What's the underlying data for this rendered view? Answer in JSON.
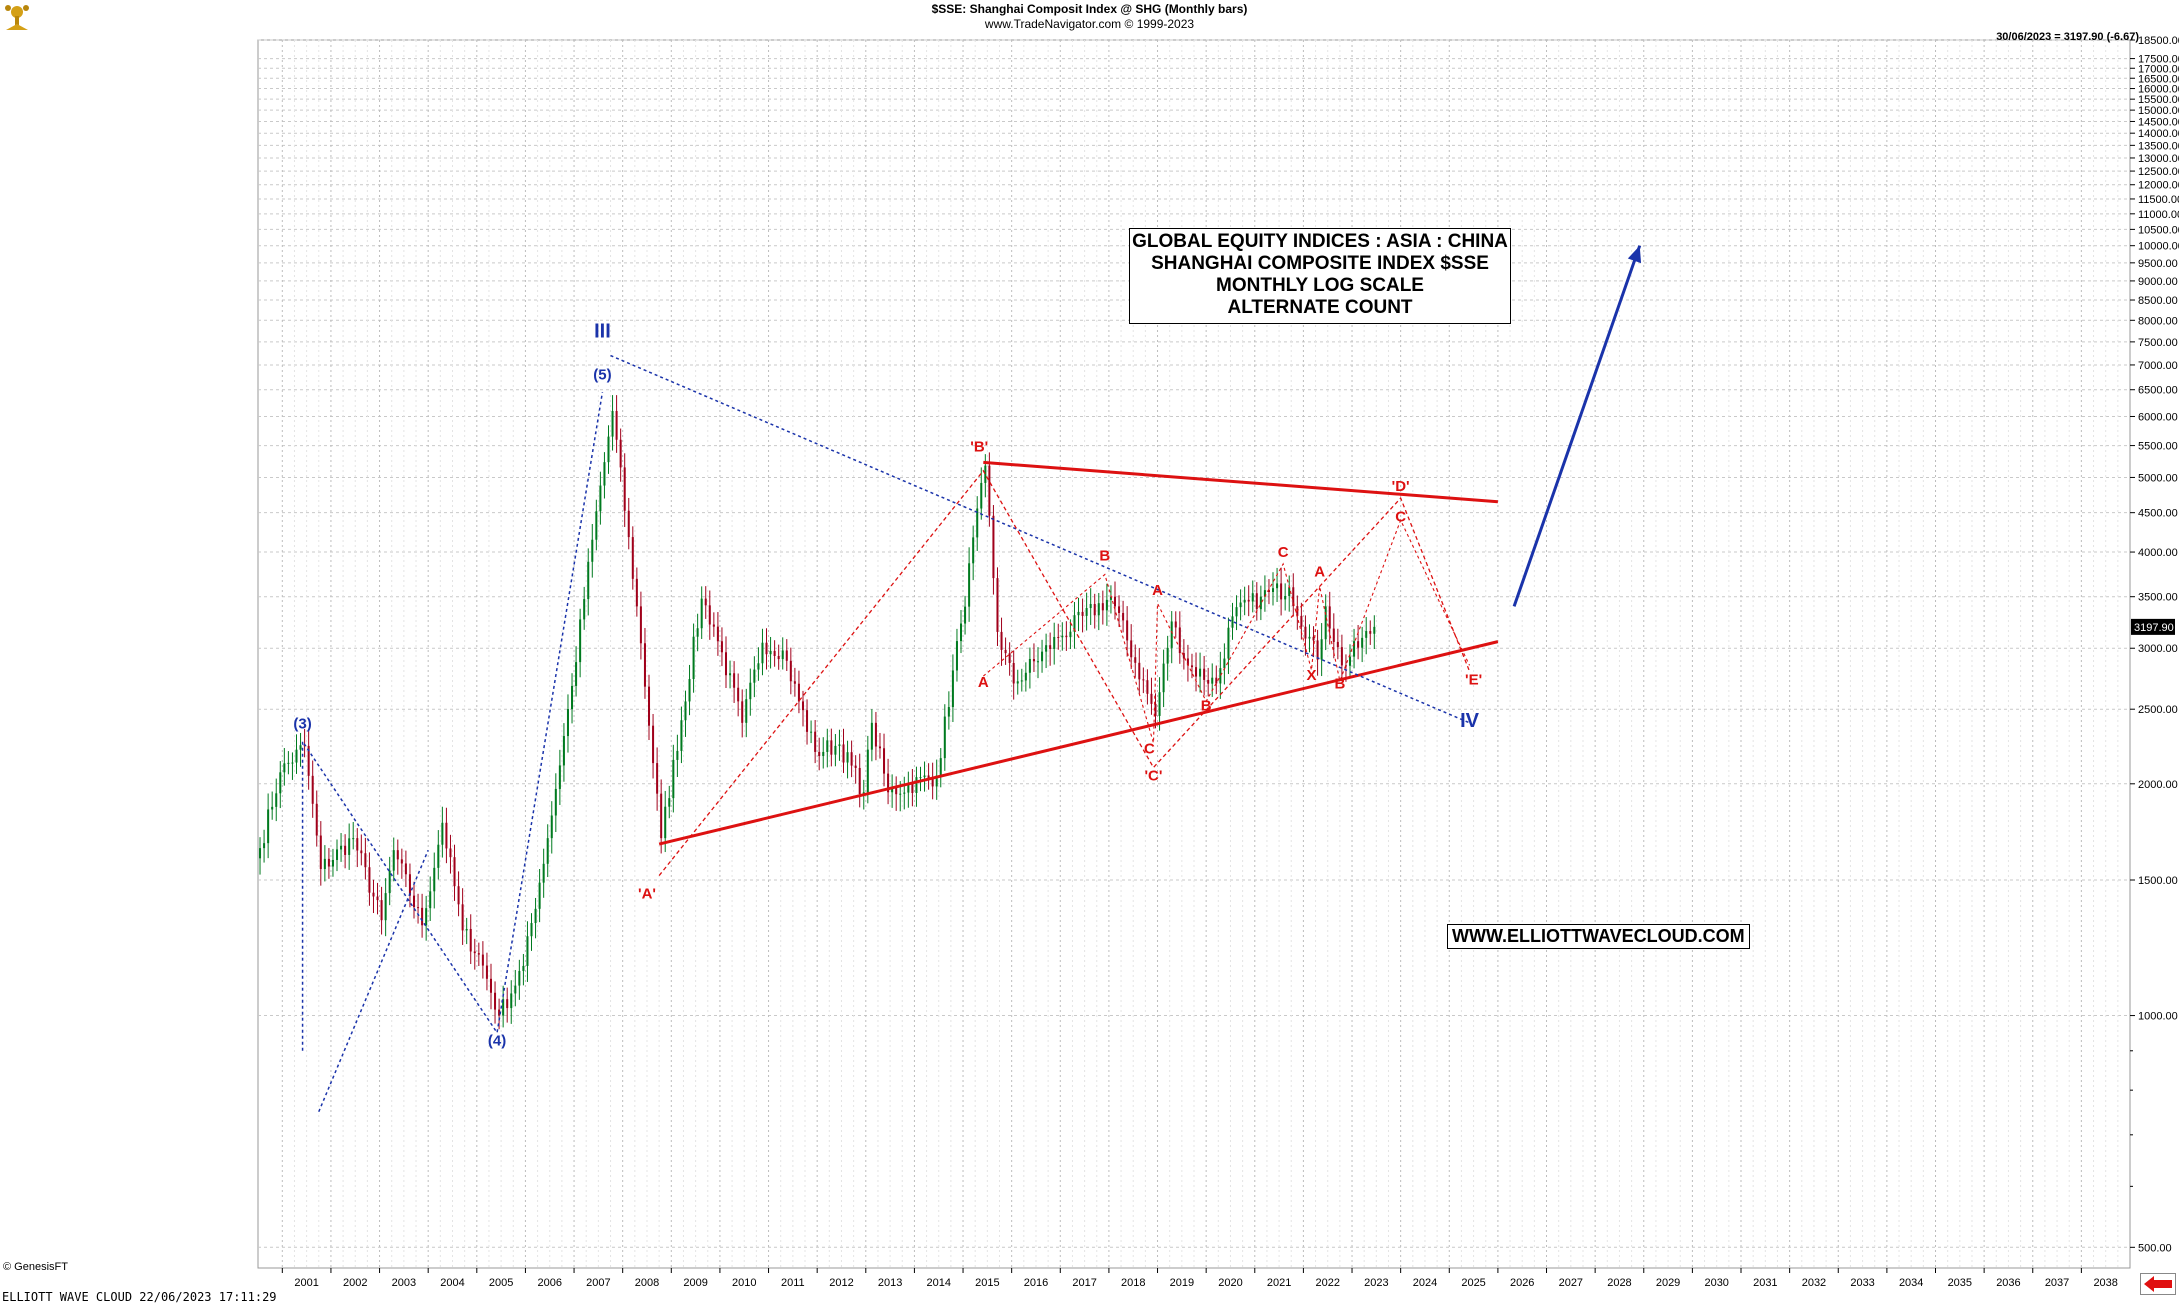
{
  "header": {
    "title": "$SSE:  Shanghai Composit Index @ SHG  (Monthly bars)",
    "source": "www.TradeNavigator.com © 1999-2023",
    "last_quote": "30/06/2023 = 3197.90 (-6.67)"
  },
  "info_box": {
    "lines": [
      "GLOBAL EQUITY INDICES : ASIA : CHINA",
      "SHANGHAI COMPOSITE INDEX $SSE",
      "MONTHLY LOG SCALE",
      "ALTERNATE COUNT"
    ]
  },
  "website": "WWW.ELLIOTTWAVECLOUD.COM",
  "copyright": "© GenesisFT",
  "footer": "ELLIOTT WAVE CLOUD   22/06/2023 17:11:29",
  "colors": {
    "bull": "#007a1f",
    "bear": "#a0001a",
    "red_line": "#dd1111",
    "blue_line": "#1a33aa",
    "grid": "#c9c9c9"
  },
  "icons": {
    "logo": "bull-bear-logo-icon",
    "nav": "red-arrow-left-icon"
  },
  "chart_data": {
    "type": "candlestick",
    "scale": "log",
    "period": "monthly",
    "ylim": [
      470,
      18500
    ],
    "xlim": [
      "2000-07",
      "2038-12"
    ],
    "x_ticks": [
      "2001",
      "2002",
      "2003",
      "2004",
      "2005",
      "2006",
      "2007",
      "2008",
      "2009",
      "2010",
      "2011",
      "2012",
      "2013",
      "2014",
      "2015",
      "2016",
      "2017",
      "2018",
      "2019",
      "2020",
      "2021",
      "2022",
      "2023",
      "2024",
      "2025",
      "2026",
      "2027",
      "2028",
      "2029",
      "2030",
      "2031",
      "2032",
      "2033",
      "2034",
      "2035",
      "2036",
      "2037",
      "2038"
    ],
    "y_ticks": [
      "500.00",
      "1000.00",
      "1500.00",
      "2000.00",
      "2500.00",
      "3000.00",
      "3500.00",
      "4000.00",
      "4500.00",
      "5000.00",
      "5500.00",
      "6000.00",
      "6500.00",
      "7000.00",
      "7500.00",
      "8000.00",
      "8500.00",
      "9000.00",
      "9500.00",
      "10000.00",
      "10500.00",
      "11000.00",
      "11500.00",
      "12000.00",
      "12500.00",
      "13000.00",
      "13500.00",
      "14000.00",
      "14500.00",
      "15000.00",
      "15500.00",
      "16000.00",
      "16500.00",
      "17000.00",
      "17500.00",
      "18500.00"
    ],
    "last_price": "3197.90",
    "price_anchors": [
      [
        "2000-07",
        1650
      ],
      [
        "2000-12",
        2070
      ],
      [
        "2001-06",
        2240
      ],
      [
        "2001-10",
        1550
      ],
      [
        "2002-06",
        1700
      ],
      [
        "2003-01",
        1330
      ],
      [
        "2003-04",
        1640
      ],
      [
        "2003-11",
        1310
      ],
      [
        "2004-04",
        1780
      ],
      [
        "2004-09",
        1290
      ],
      [
        "2005-01",
        1200
      ],
      [
        "2005-06",
        1000
      ],
      [
        "2005-12",
        1160
      ],
      [
        "2006-06",
        1700
      ],
      [
        "2006-12",
        2680
      ],
      [
        "2007-05",
        4150
      ],
      [
        "2007-10",
        6100
      ],
      [
        "2008-04",
        3400
      ],
      [
        "2008-10",
        1700
      ],
      [
        "2009-08",
        3480
      ],
      [
        "2009-11",
        3200
      ],
      [
        "2010-06",
        2400
      ],
      [
        "2010-11",
        3050
      ],
      [
        "2011-04",
        2980
      ],
      [
        "2011-12",
        2200
      ],
      [
        "2012-06",
        2250
      ],
      [
        "2012-12",
        1950
      ],
      [
        "2013-02",
        2400
      ],
      [
        "2013-06",
        1950
      ],
      [
        "2014-06",
        2050
      ],
      [
        "2014-12",
        3230
      ],
      [
        "2015-06",
        5180
      ],
      [
        "2015-09",
        3150
      ],
      [
        "2016-01",
        2700
      ],
      [
        "2016-12",
        3100
      ],
      [
        "2018-01",
        3500
      ],
      [
        "2018-12",
        2450
      ],
      [
        "2019-04",
        3250
      ],
      [
        "2019-08",
        2850
      ],
      [
        "2020-03",
        2700
      ],
      [
        "2020-07",
        3300
      ],
      [
        "2021-02",
        3500
      ],
      [
        "2021-09",
        3600
      ],
      [
        "2022-04",
        2900
      ],
      [
        "2022-06",
        3400
      ],
      [
        "2022-10",
        2850
      ],
      [
        "2023-06",
        3197.9
      ]
    ],
    "wave_labels": [
      {
        "text": "(3)",
        "x": "2001-06",
        "y": 2360,
        "color": "blue"
      },
      {
        "text": "(4)",
        "x": "2005-06",
        "y": 915,
        "color": "blue"
      },
      {
        "text": "(5)",
        "x": "2007-08",
        "y": 6700,
        "color": "blue"
      },
      {
        "text": "III",
        "x": "2007-08",
        "y": 7600,
        "color": "blue"
      },
      {
        "text": "IV",
        "x": "2025-06",
        "y": 2370,
        "color": "blue"
      },
      {
        "text": "'A'",
        "x": "2008-07",
        "y": 1420,
        "color": "red"
      },
      {
        "text": "'B'",
        "x": "2015-05",
        "y": 5400,
        "color": "red"
      },
      {
        "text": "'C'",
        "x": "2018-12",
        "y": 2020,
        "color": "red"
      },
      {
        "text": "'D'",
        "x": "2024-01",
        "y": 4800,
        "color": "red"
      },
      {
        "text": "'E'",
        "x": "2025-07",
        "y": 2690,
        "color": "red"
      },
      {
        "text": "A",
        "x": "2015-06",
        "y": 2670,
        "color": "red"
      },
      {
        "text": "B",
        "x": "2017-12",
        "y": 3900,
        "color": "red"
      },
      {
        "text": "C",
        "x": "2018-11",
        "y": 2190,
        "color": "red"
      },
      {
        "text": "A",
        "x": "2019-01",
        "y": 3520,
        "color": "red"
      },
      {
        "text": "B",
        "x": "2020-01",
        "y": 2490,
        "color": "red"
      },
      {
        "text": "C",
        "x": "2021-08",
        "y": 3940,
        "color": "red"
      },
      {
        "text": "X",
        "x": "2022-03",
        "y": 2730,
        "color": "red"
      },
      {
        "text": "A",
        "x": "2022-05",
        "y": 3720,
        "color": "red"
      },
      {
        "text": "B",
        "x": "2022-10",
        "y": 2660,
        "color": "red"
      },
      {
        "text": "C",
        "x": "2024-01",
        "y": 4380,
        "color": "red"
      }
    ],
    "red_trendlines": [
      [
        [
          "2008-10",
          1670
        ],
        [
          "2026-01",
          3060
        ]
      ],
      [
        [
          "2015-06",
          5230
        ],
        [
          "2026-01",
          4650
        ]
      ]
    ],
    "blue_trendlines": [
      [
        [
          "2007-10",
          7200
        ],
        [
          "2025-06",
          2400
        ]
      ]
    ],
    "blue_wave_path": [
      [
        "2001-06",
        900
      ],
      [
        "2001-06",
        2270
      ],
      [
        "2005-06",
        950
      ],
      [
        "2007-08",
        6450
      ]
    ],
    "blue_wave_path2": [
      [
        "2001-10",
        750
      ],
      [
        "2004-01",
        1640
      ]
    ],
    "red_dashed_path": [
      [
        "2008-10",
        1520
      ],
      [
        "2015-06",
        5100
      ],
      [
        "2018-12",
        2100
      ],
      [
        "2024-01",
        4700
      ],
      [
        "2025-06",
        2800
      ]
    ],
    "red_subwave_path": [
      [
        "2015-06",
        2760
      ],
      [
        "2017-12",
        3740
      ],
      [
        "2018-12",
        2260
      ],
      [
        "2019-01",
        3430
      ],
      [
        "2020-01",
        2560
      ],
      [
        "2021-08",
        3860
      ],
      [
        "2022-03",
        2810
      ],
      [
        "2022-05",
        3610
      ],
      [
        "2022-10",
        2720
      ],
      [
        "2024-01",
        4400
      ],
      [
        "2025-06",
        2850
      ]
    ],
    "forecast_arrow": [
      [
        "2026-05",
        3400
      ],
      [
        "2028-12",
        10000
      ]
    ]
  }
}
